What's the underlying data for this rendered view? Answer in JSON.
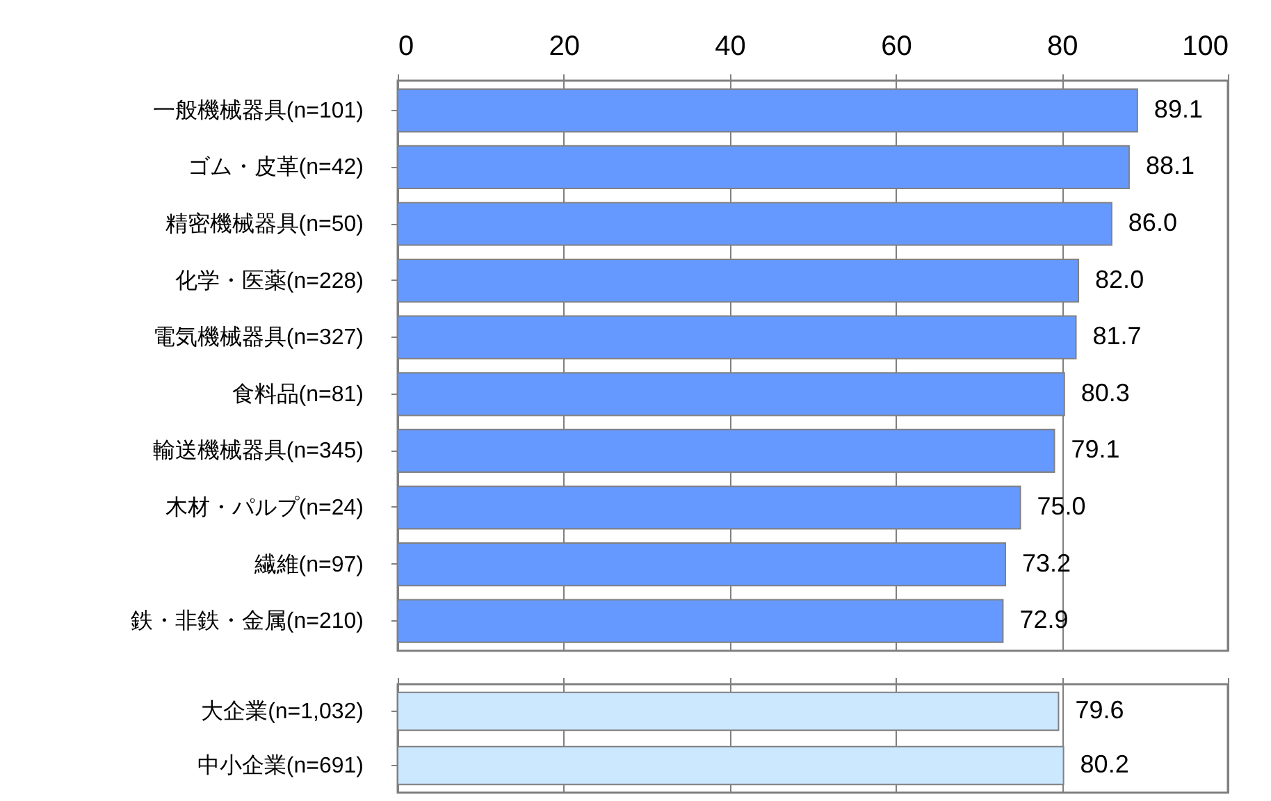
{
  "chart_data": [
    {
      "type": "bar",
      "orientation": "horizontal",
      "categories": [
        "一般機械器具(n=101)",
        "ゴム・皮革(n=42)",
        "精密機械器具(n=50)",
        "化学・医薬(n=228)",
        "電気機械器具(n=327)",
        "食料品(n=81)",
        "輸送機械器具(n=345)",
        "木材・パルプ(n=24)",
        "繊維(n=97)",
        "鉄・非鉄・金属(n=210)"
      ],
      "series": [
        {
          "color": "#6699ff",
          "values": [
            89.1,
            88.1,
            86.0,
            82.0,
            81.7,
            80.3,
            79.1,
            75.0,
            73.2,
            72.9
          ],
          "value_labels": [
            "89.1",
            "88.1",
            "86.0",
            "82.0",
            "81.7",
            "80.3",
            "79.1",
            "75.0",
            "73.2",
            "72.9"
          ]
        }
      ],
      "xlim": [
        0,
        100
      ],
      "xticks": [
        0,
        20,
        40,
        60,
        80,
        100
      ],
      "grid": "x",
      "legend": false
    },
    {
      "type": "bar",
      "orientation": "horizontal",
      "categories": [
        "大企業(n=1,032)",
        "中小企業(n=691)"
      ],
      "series": [
        {
          "color": "#cce8ff",
          "values": [
            79.6,
            80.2
          ],
          "value_labels": [
            "79.6",
            "80.2"
          ]
        }
      ],
      "xlim": [
        0,
        100
      ],
      "xticks": [
        0,
        20,
        40,
        60,
        80,
        100
      ],
      "grid": "x",
      "legend": false,
      "tick_labels": "y"
    }
  ]
}
